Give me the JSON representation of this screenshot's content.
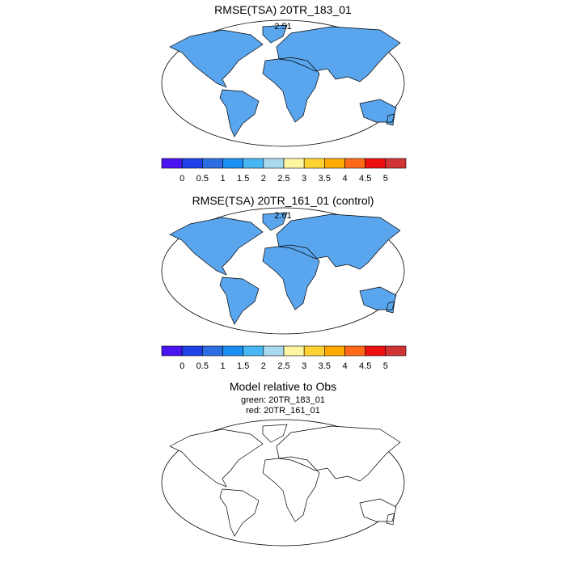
{
  "panels": [
    {
      "title": "RMSE(TSA) 20TR_183_01",
      "subtitle": "2.51",
      "colorbar": {
        "labels": [
          "0",
          "0.5",
          "1",
          "1.5",
          "2",
          "2.5",
          "3",
          "3.5",
          "4",
          "4.5",
          "5"
        ],
        "colors": [
          "#4a14f0",
          "#2040e8",
          "#2c6ee2",
          "#1a90f2",
          "#48b6f2",
          "#a9d9ef",
          "#fff6a2",
          "#ffd233",
          "#ffaa00",
          "#ff6a1a",
          "#ee1010",
          "#d03434"
        ]
      }
    },
    {
      "title": "RMSE(TSA) 20TR_161_01 (control)",
      "subtitle": "2.61",
      "colorbar": {
        "labels": [
          "0",
          "0.5",
          "1",
          "1.5",
          "2",
          "2.5",
          "3",
          "3.5",
          "4",
          "4.5",
          "5"
        ],
        "colors": [
          "#4a14f0",
          "#2040e8",
          "#2c6ee2",
          "#1a90f2",
          "#48b6f2",
          "#a9d9ef",
          "#fff6a2",
          "#ffd233",
          "#ffaa00",
          "#ff6a1a",
          "#ee1010",
          "#d03434"
        ]
      }
    },
    {
      "title": "Model relative to Obs",
      "subtitle_lines": [
        "green: 20TR_183_01",
        "red: 20TR_161_01"
      ]
    }
  ]
}
